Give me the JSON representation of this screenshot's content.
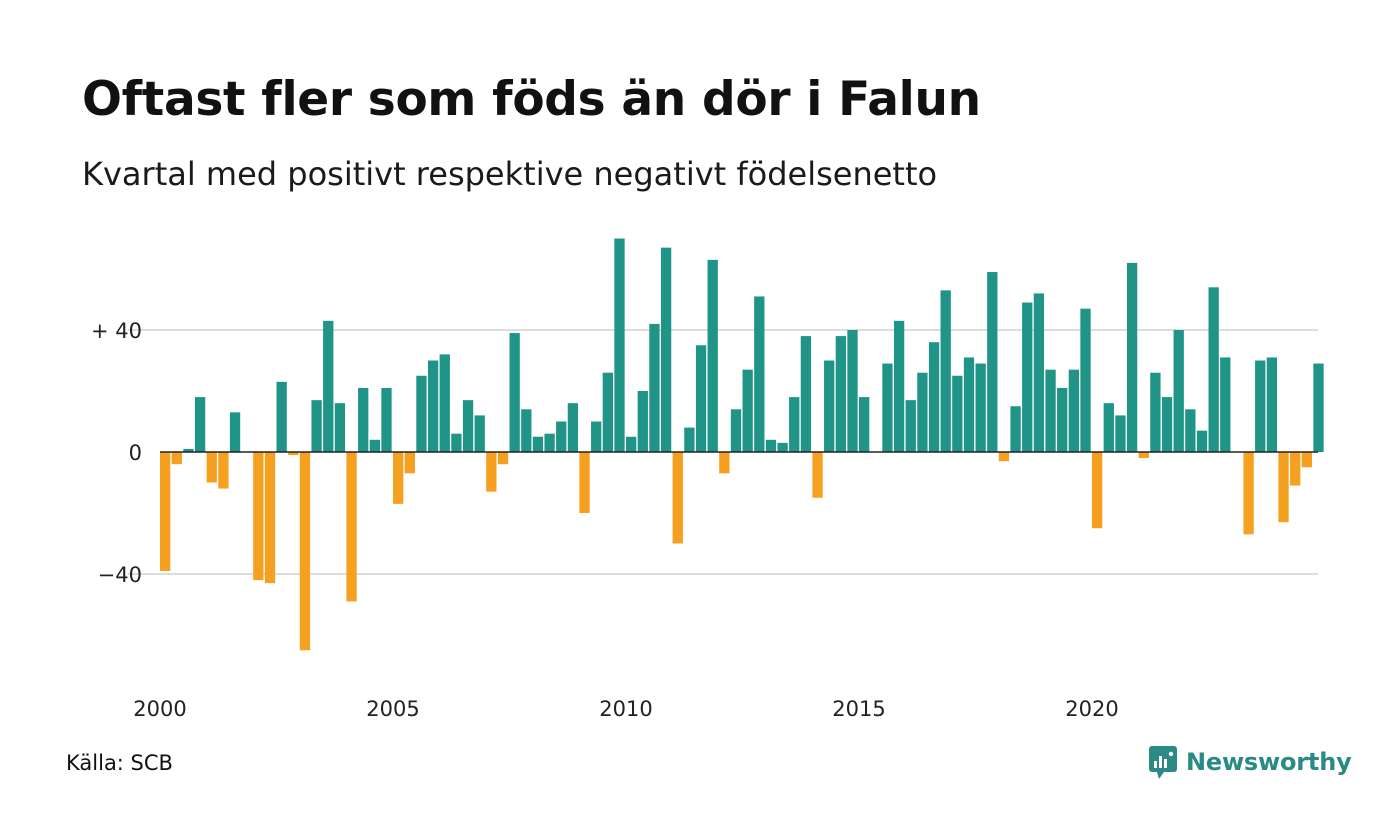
{
  "title": "Oftast fler som föds än dör i Falun",
  "subtitle": "Kvartal med positivt respektive negativt födelsenetto",
  "source": "Källa: SCB",
  "brand": {
    "name": "Newsworthy",
    "icon": "newsworthy-logo-icon"
  },
  "colors": {
    "positive": "#1f9487",
    "negative": "#f5a01e",
    "grid": "#dddddd",
    "axis": "#222222"
  },
  "chart_data": {
    "type": "bar",
    "title": "Oftast fler som föds än dör i Falun",
    "subtitle": "Kvartal med positivt respektive negativt födelsenetto",
    "xlabel": "",
    "ylabel": "",
    "x_start_year": 2000,
    "periods_per_year": 4,
    "x_tick_labels": [
      "2000",
      "2005",
      "2010",
      "2015",
      "2020"
    ],
    "x_tick_years": [
      2000,
      2005,
      2010,
      2015,
      2020
    ],
    "y_ticks": [
      {
        "value": 40,
        "label": "+ 40"
      },
      {
        "value": 0,
        "label": "0"
      },
      {
        "value": -40,
        "label": "−40"
      }
    ],
    "ylim": [
      -70,
      72
    ],
    "grid": true,
    "legend": "none",
    "values": [
      -39,
      -4,
      1,
      18,
      -10,
      -12,
      13,
      0,
      -42,
      -43,
      23,
      -1,
      -65,
      17,
      43,
      16,
      -49,
      21,
      4,
      21,
      -17,
      -7,
      25,
      30,
      32,
      6,
      17,
      12,
      -13,
      -4,
      39,
      14,
      5,
      6,
      10,
      16,
      -20,
      10,
      26,
      70,
      5,
      20,
      42,
      67,
      -30,
      8,
      35,
      63,
      -7,
      14,
      27,
      51,
      4,
      3,
      18,
      38,
      -15,
      30,
      38,
      40,
      18,
      0,
      29,
      43,
      17,
      26,
      36,
      53,
      25,
      31,
      29,
      59,
      -3,
      15,
      49,
      52,
      27,
      21,
      27,
      47,
      -25,
      16,
      12,
      62,
      -2,
      26,
      18,
      40,
      14,
      7,
      54,
      31,
      0,
      -27,
      30,
      31,
      -23,
      -11,
      -5,
      29
    ]
  }
}
